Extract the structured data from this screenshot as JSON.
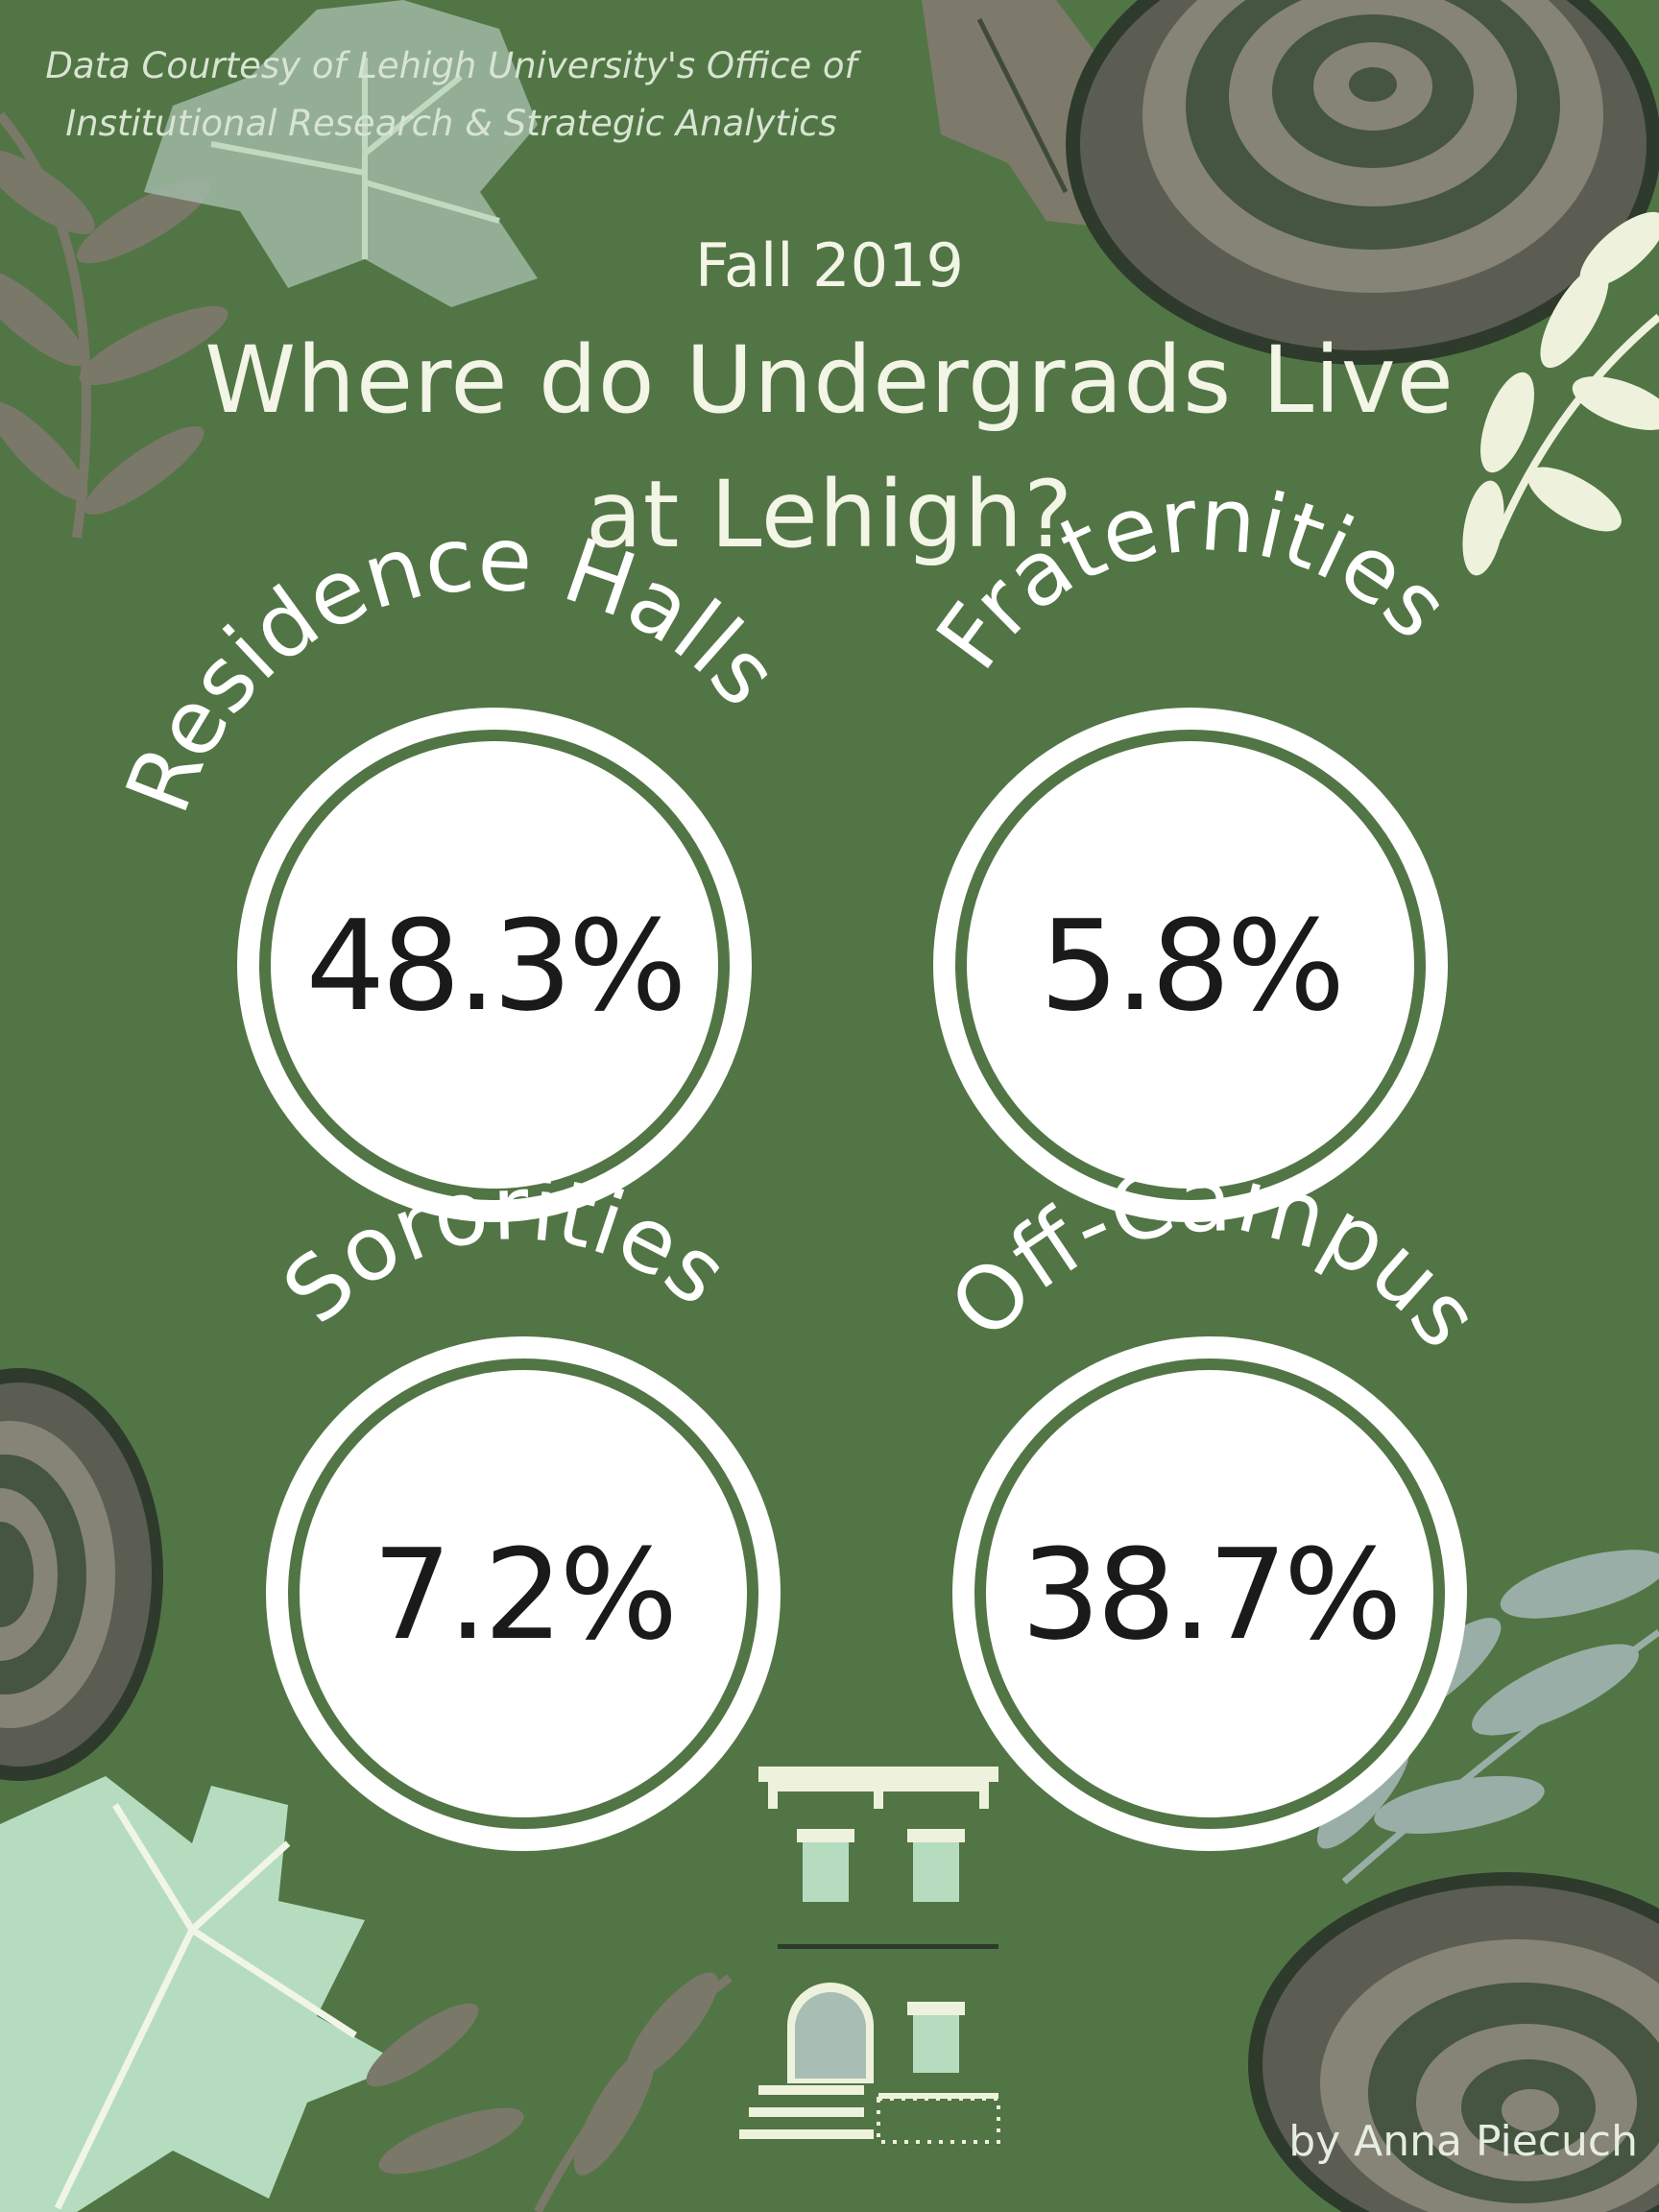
{
  "credit": {
    "line1": "Data Courtesy of Lehigh University's Office of",
    "line2": "Institutional Research & Strategic Analytics"
  },
  "season": "Fall 2019",
  "title": {
    "line1": "Where do Undergrads Live",
    "line2": "at Lehigh?"
  },
  "categories": [
    {
      "label": "Residence Halls",
      "value": "48.3%"
    },
    {
      "label": "Fraternities",
      "value": "5.8%"
    },
    {
      "label": "Sororities",
      "value": "7.2%"
    },
    {
      "label": "Off-Campus",
      "value": "38.7%"
    }
  ],
  "byline": "by Anna Piecuch",
  "colors": {
    "background": "#527545",
    "circle": "#ffffff",
    "text_light": "#f3f5e6",
    "percent_text": "#1a1a1a",
    "leaf_grey": "#7d7a6c",
    "leaf_mint": "#b6dcc0",
    "leaf_cream": "#eef2dc"
  },
  "icons": [
    "fern-leaf-icon",
    "maple-leaf-icon",
    "tree-rings-icon",
    "rowhouse-icon"
  ]
}
